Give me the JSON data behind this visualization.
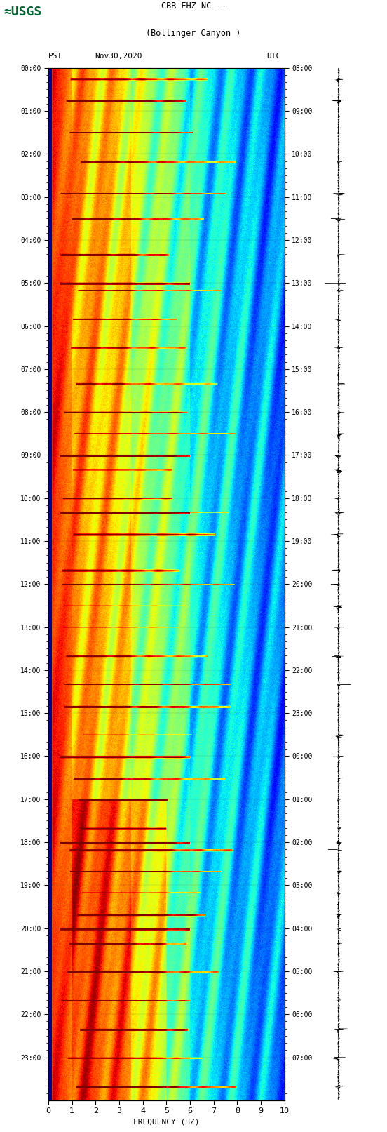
{
  "title_line1": "CBR EHZ NC --",
  "title_line2": "(Bollinger Canyon )",
  "left_timezone": "PST",
  "right_timezone": "UTC",
  "date": "Nov30,2020",
  "xlabel": "FREQUENCY (HZ)",
  "freq_min": 0,
  "freq_max": 10,
  "pst_times": [
    "00:00",
    "01:00",
    "02:00",
    "03:00",
    "04:00",
    "05:00",
    "06:00",
    "07:00",
    "08:00",
    "09:00",
    "10:00",
    "11:00",
    "12:00",
    "13:00",
    "14:00",
    "15:00",
    "16:00",
    "17:00",
    "18:00",
    "19:00",
    "20:00",
    "21:00",
    "22:00",
    "23:00"
  ],
  "utc_times": [
    "08:00",
    "09:00",
    "10:00",
    "11:00",
    "12:00",
    "13:00",
    "14:00",
    "15:00",
    "16:00",
    "17:00",
    "18:00",
    "19:00",
    "20:00",
    "21:00",
    "22:00",
    "23:00",
    "00:00",
    "01:00",
    "02:00",
    "03:00",
    "04:00",
    "05:00",
    "06:00",
    "07:00"
  ],
  "background_color": "#ffffff",
  "fig_width": 5.52,
  "fig_height": 16.13,
  "dpi": 100
}
